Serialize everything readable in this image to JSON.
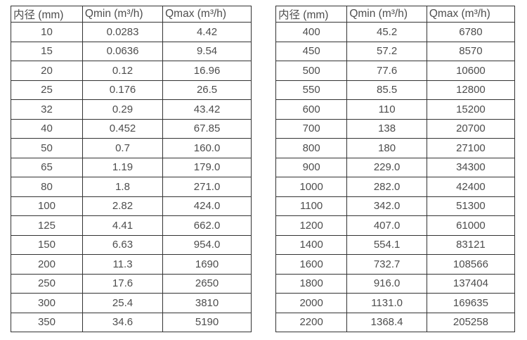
{
  "colors": {
    "border": "#333333",
    "text": "#4d4d4d",
    "background": "#ffffff"
  },
  "tables": [
    {
      "name": "flow-range-small-diameters",
      "headers": [
        "内径 (mm)",
        "Qmin (m³/h)",
        "Qmax (m³/h)"
      ],
      "rows": [
        [
          "10",
          "0.0283",
          "4.42"
        ],
        [
          "15",
          "0.0636",
          "9.54"
        ],
        [
          "20",
          "0.12",
          "16.96"
        ],
        [
          "25",
          "0.176",
          "26.5"
        ],
        [
          "32",
          "0.29",
          "43.42"
        ],
        [
          "40",
          "0.452",
          "67.85"
        ],
        [
          "50",
          "0.7",
          "160.0"
        ],
        [
          "65",
          "1.19",
          "179.0"
        ],
        [
          "80",
          "1.8",
          "271.0"
        ],
        [
          "100",
          "2.82",
          "424.0"
        ],
        [
          "125",
          "4.41",
          "662.0"
        ],
        [
          "150",
          "6.63",
          "954.0"
        ],
        [
          "200",
          "11.3",
          "1690"
        ],
        [
          "250",
          "17.6",
          "2650"
        ],
        [
          "300",
          "25.4",
          "3810"
        ],
        [
          "350",
          "34.6",
          "5190"
        ]
      ]
    },
    {
      "name": "flow-range-large-diameters",
      "headers": [
        "内径 (mm)",
        "Qmin (m³/h)",
        "Qmax (m³/h)"
      ],
      "rows": [
        [
          "400",
          "45.2",
          "6780"
        ],
        [
          "450",
          "57.2",
          "8570"
        ],
        [
          "500",
          "77.6",
          "10600"
        ],
        [
          "550",
          "85.5",
          "12800"
        ],
        [
          "600",
          "110",
          "15200"
        ],
        [
          "700",
          "138",
          "20700"
        ],
        [
          "800",
          "180",
          "27100"
        ],
        [
          "900",
          "229.0",
          "34300"
        ],
        [
          "1000",
          "282.0",
          "42400"
        ],
        [
          "1100",
          "342.0",
          "51300"
        ],
        [
          "1200",
          "407.0",
          "61000"
        ],
        [
          "1400",
          "554.1",
          "83121"
        ],
        [
          "1600",
          "732.7",
          "108566"
        ],
        [
          "1800",
          "916.0",
          "137404"
        ],
        [
          "2000",
          "1131.0",
          "169635"
        ],
        [
          "2200",
          "1368.4",
          "205258"
        ]
      ]
    }
  ]
}
